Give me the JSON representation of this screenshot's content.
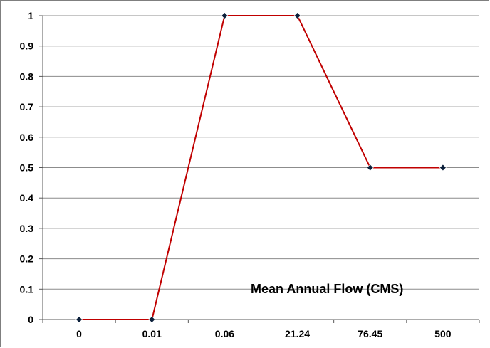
{
  "chart_data": {
    "type": "line",
    "categories": [
      "0",
      "0.01",
      "0.06",
      "21.24",
      "76.45",
      "500"
    ],
    "series": [
      {
        "values": [
          0,
          0,
          1,
          1,
          0.5,
          0.5
        ]
      }
    ],
    "y_ticks": [
      "0",
      "0.1",
      "0.2",
      "0.3",
      "0.4",
      "0.5",
      "0.6",
      "0.7",
      "0.8",
      "0.9",
      "1"
    ],
    "ylim": [
      0,
      1
    ],
    "grid": "horizontal",
    "legend": "none",
    "annotation": "Mean Annual Flow (CMS)",
    "colors": {
      "line": "#c00000",
      "marker": "#0b1f3a",
      "grid": "#8c8c8c",
      "axis": "#595959",
      "frame": "#7f7f7f"
    }
  }
}
